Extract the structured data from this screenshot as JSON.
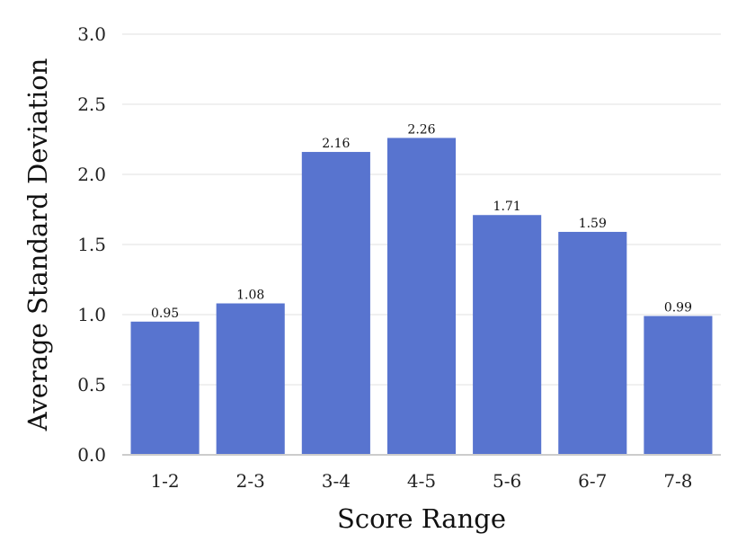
{
  "chart_data": {
    "type": "bar",
    "categories": [
      "1-2",
      "2-3",
      "3-4",
      "4-5",
      "5-6",
      "6-7",
      "7-8"
    ],
    "values": [
      0.95,
      1.08,
      2.16,
      2.26,
      1.71,
      1.59,
      0.99
    ],
    "data_labels": [
      "0.95",
      "1.08",
      "2.16",
      "2.26",
      "1.71",
      "1.59",
      "0.99"
    ],
    "title": "",
    "xlabel": "Score Range",
    "ylabel": "Average Standard Deviation",
    "ylim": [
      0,
      3.0
    ],
    "yticks": [
      0.0,
      0.5,
      1.0,
      1.5,
      2.0,
      2.5,
      3.0
    ],
    "ytick_labels": [
      "0.0",
      "0.5",
      "1.0",
      "1.5",
      "2.0",
      "2.5",
      "3.0"
    ],
    "grid": true,
    "legend": "none",
    "colors": {
      "bar": "#5874cf",
      "grid": "#ebebeb",
      "axis": "#cccccc"
    }
  }
}
